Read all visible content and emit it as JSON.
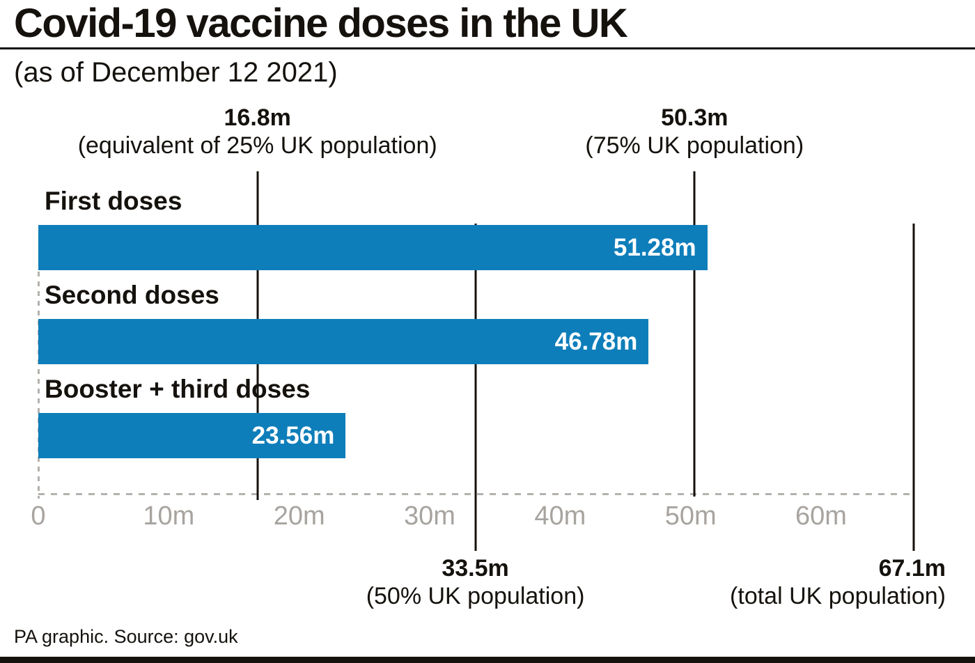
{
  "header": {
    "title": "Covid-19 vaccine doses in the UK",
    "subtitle": "(as of December 12 2021)"
  },
  "chart_data": {
    "type": "bar",
    "orientation": "horizontal",
    "title": "Covid-19 vaccine doses in the UK",
    "subtitle": "(as of December 12 2021)",
    "unit": "million doses",
    "categories": [
      "First doses",
      "Second doses",
      "Booster + third doses"
    ],
    "values": [
      51.28,
      46.78,
      23.56
    ],
    "value_labels": [
      "51.28m",
      "46.78m",
      "23.56m"
    ],
    "xlim": [
      0,
      67.1
    ],
    "x_ticks": [
      0,
      10,
      20,
      30,
      40,
      50,
      60
    ],
    "x_tick_labels": [
      "0",
      "10m",
      "20m",
      "30m",
      "40m",
      "50m",
      "60m"
    ],
    "bar_color": "#0e7eba",
    "grid": "off",
    "baseline_style": "dashed",
    "legend": "none",
    "reference_lines": [
      {
        "value": 16.8,
        "label": "16.8m",
        "note": "(equivalent of 25% UK population)",
        "labels_at": "top"
      },
      {
        "value": 50.3,
        "label": "50.3m",
        "note": "(75% UK population)",
        "labels_at": "top"
      },
      {
        "value": 33.5,
        "label": "33.5m",
        "note": "(50% UK population)",
        "labels_at": "bottom"
      },
      {
        "value": 67.1,
        "label": "67.1m",
        "note": "(total UK population)",
        "labels_at": "bottom"
      }
    ]
  },
  "footer": {
    "credit": "PA graphic. Source: gov.uk"
  },
  "colors": {
    "bar": "#0e7eba",
    "ink": "#15120e",
    "tick_text": "#a7a39f",
    "dash": "#b5b1ad",
    "background": "#ffffff"
  }
}
